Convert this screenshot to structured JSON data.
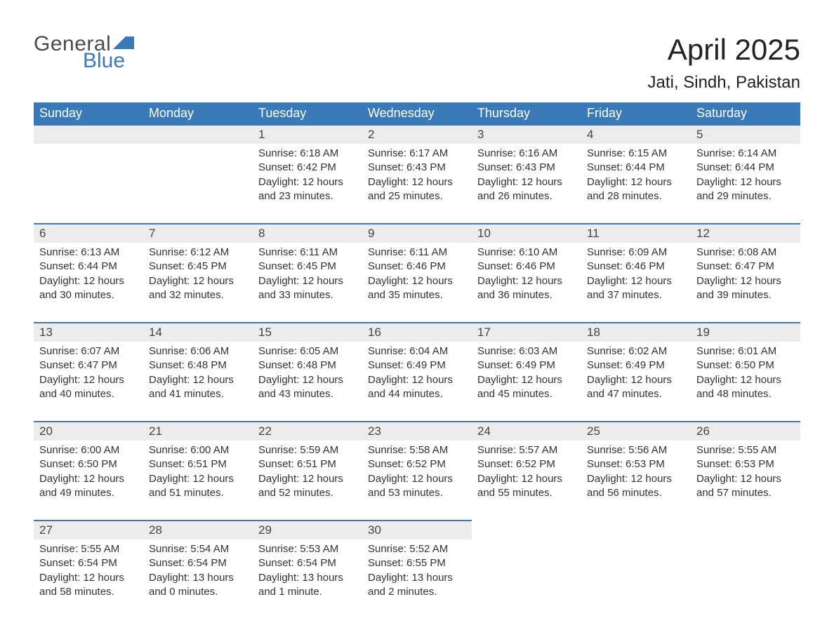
{
  "brand": {
    "general": "General",
    "blue": "Blue",
    "flag_color": "#3a7ab8"
  },
  "title": "April 2025",
  "location": "Jati, Sindh, Pakistan",
  "colors": {
    "header_bg": "#3a7ab8",
    "header_text": "#ffffff",
    "daynum_bg": "#ececec",
    "row_border": "#3a7ab8",
    "body_text": "#333333",
    "page_bg": "#ffffff"
  },
  "dayNames": [
    "Sunday",
    "Monday",
    "Tuesday",
    "Wednesday",
    "Thursday",
    "Friday",
    "Saturday"
  ],
  "labels": {
    "sunrise": "Sunrise:",
    "sunset": "Sunset:",
    "daylight": "Daylight:"
  },
  "weeks": [
    [
      null,
      null,
      {
        "n": "1",
        "sunrise": "6:18 AM",
        "sunset": "6:42 PM",
        "daylight": "12 hours and 23 minutes."
      },
      {
        "n": "2",
        "sunrise": "6:17 AM",
        "sunset": "6:43 PM",
        "daylight": "12 hours and 25 minutes."
      },
      {
        "n": "3",
        "sunrise": "6:16 AM",
        "sunset": "6:43 PM",
        "daylight": "12 hours and 26 minutes."
      },
      {
        "n": "4",
        "sunrise": "6:15 AM",
        "sunset": "6:44 PM",
        "daylight": "12 hours and 28 minutes."
      },
      {
        "n": "5",
        "sunrise": "6:14 AM",
        "sunset": "6:44 PM",
        "daylight": "12 hours and 29 minutes."
      }
    ],
    [
      {
        "n": "6",
        "sunrise": "6:13 AM",
        "sunset": "6:44 PM",
        "daylight": "12 hours and 30 minutes."
      },
      {
        "n": "7",
        "sunrise": "6:12 AM",
        "sunset": "6:45 PM",
        "daylight": "12 hours and 32 minutes."
      },
      {
        "n": "8",
        "sunrise": "6:11 AM",
        "sunset": "6:45 PM",
        "daylight": "12 hours and 33 minutes."
      },
      {
        "n": "9",
        "sunrise": "6:11 AM",
        "sunset": "6:46 PM",
        "daylight": "12 hours and 35 minutes."
      },
      {
        "n": "10",
        "sunrise": "6:10 AM",
        "sunset": "6:46 PM",
        "daylight": "12 hours and 36 minutes."
      },
      {
        "n": "11",
        "sunrise": "6:09 AM",
        "sunset": "6:46 PM",
        "daylight": "12 hours and 37 minutes."
      },
      {
        "n": "12",
        "sunrise": "6:08 AM",
        "sunset": "6:47 PM",
        "daylight": "12 hours and 39 minutes."
      }
    ],
    [
      {
        "n": "13",
        "sunrise": "6:07 AM",
        "sunset": "6:47 PM",
        "daylight": "12 hours and 40 minutes."
      },
      {
        "n": "14",
        "sunrise": "6:06 AM",
        "sunset": "6:48 PM",
        "daylight": "12 hours and 41 minutes."
      },
      {
        "n": "15",
        "sunrise": "6:05 AM",
        "sunset": "6:48 PM",
        "daylight": "12 hours and 43 minutes."
      },
      {
        "n": "16",
        "sunrise": "6:04 AM",
        "sunset": "6:49 PM",
        "daylight": "12 hours and 44 minutes."
      },
      {
        "n": "17",
        "sunrise": "6:03 AM",
        "sunset": "6:49 PM",
        "daylight": "12 hours and 45 minutes."
      },
      {
        "n": "18",
        "sunrise": "6:02 AM",
        "sunset": "6:49 PM",
        "daylight": "12 hours and 47 minutes."
      },
      {
        "n": "19",
        "sunrise": "6:01 AM",
        "sunset": "6:50 PM",
        "daylight": "12 hours and 48 minutes."
      }
    ],
    [
      {
        "n": "20",
        "sunrise": "6:00 AM",
        "sunset": "6:50 PM",
        "daylight": "12 hours and 49 minutes."
      },
      {
        "n": "21",
        "sunrise": "6:00 AM",
        "sunset": "6:51 PM",
        "daylight": "12 hours and 51 minutes."
      },
      {
        "n": "22",
        "sunrise": "5:59 AM",
        "sunset": "6:51 PM",
        "daylight": "12 hours and 52 minutes."
      },
      {
        "n": "23",
        "sunrise": "5:58 AM",
        "sunset": "6:52 PM",
        "daylight": "12 hours and 53 minutes."
      },
      {
        "n": "24",
        "sunrise": "5:57 AM",
        "sunset": "6:52 PM",
        "daylight": "12 hours and 55 minutes."
      },
      {
        "n": "25",
        "sunrise": "5:56 AM",
        "sunset": "6:53 PM",
        "daylight": "12 hours and 56 minutes."
      },
      {
        "n": "26",
        "sunrise": "5:55 AM",
        "sunset": "6:53 PM",
        "daylight": "12 hours and 57 minutes."
      }
    ],
    [
      {
        "n": "27",
        "sunrise": "5:55 AM",
        "sunset": "6:54 PM",
        "daylight": "12 hours and 58 minutes."
      },
      {
        "n": "28",
        "sunrise": "5:54 AM",
        "sunset": "6:54 PM",
        "daylight": "13 hours and 0 minutes."
      },
      {
        "n": "29",
        "sunrise": "5:53 AM",
        "sunset": "6:54 PM",
        "daylight": "13 hours and 1 minute."
      },
      {
        "n": "30",
        "sunrise": "5:52 AM",
        "sunset": "6:55 PM",
        "daylight": "13 hours and 2 minutes."
      },
      null,
      null,
      null
    ]
  ]
}
